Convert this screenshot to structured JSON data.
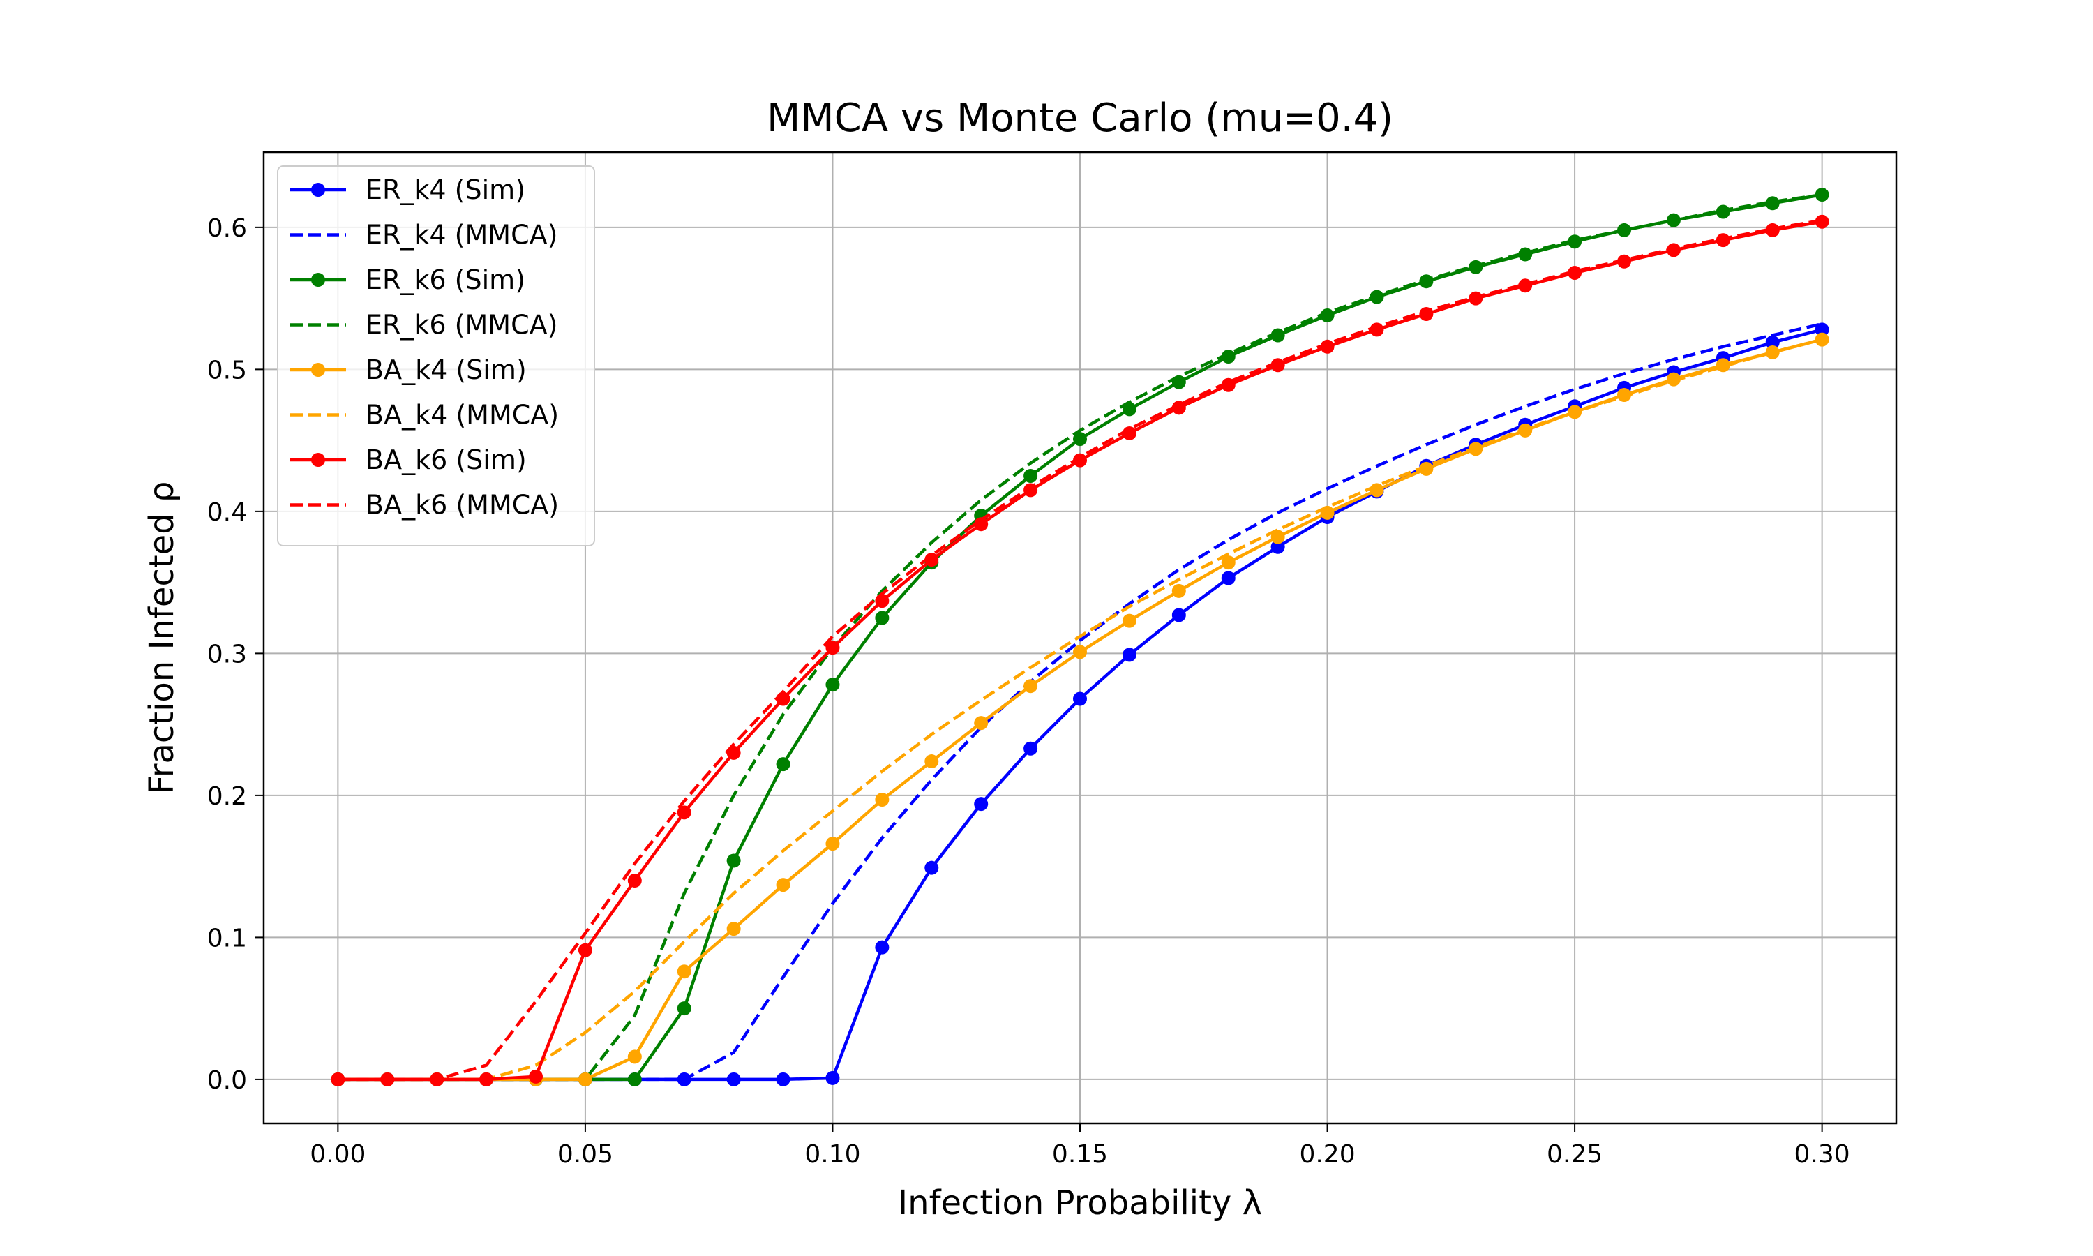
{
  "chart_data": {
    "type": "line",
    "title": "MMCA vs Monte Carlo (mu=0.4)",
    "xlabel": "Infection Probability λ",
    "ylabel": "Fraction Infected ρ",
    "xlim": [
      -0.015,
      0.315
    ],
    "ylim": [
      -0.031,
      0.653
    ],
    "xticks": [
      "0.00",
      "0.05",
      "0.10",
      "0.15",
      "0.20",
      "0.25",
      "0.30"
    ],
    "yticks": [
      "0.0",
      "0.1",
      "0.2",
      "0.3",
      "0.4",
      "0.5",
      "0.6"
    ],
    "grid": true,
    "legend_position": "top-left",
    "x": [
      0.0,
      0.01,
      0.02,
      0.03,
      0.04,
      0.05,
      0.06,
      0.07,
      0.08,
      0.09,
      0.1,
      0.11,
      0.12,
      0.13,
      0.14,
      0.15,
      0.16,
      0.17,
      0.18,
      0.19,
      0.2,
      0.21,
      0.22,
      0.23,
      0.24,
      0.25,
      0.26,
      0.27,
      0.28,
      0.29,
      0.3
    ],
    "series": [
      {
        "name": "ER_k4 (Sim)",
        "color": "#0000ff",
        "style": "solid-marker",
        "values": [
          0,
          0,
          0,
          0,
          0,
          0,
          0,
          0,
          0,
          0,
          0.001,
          0.093,
          0.149,
          0.194,
          0.233,
          0.268,
          0.299,
          0.327,
          0.353,
          0.375,
          0.396,
          0.414,
          0.432,
          0.447,
          0.461,
          0.474,
          0.487,
          0.498,
          0.508,
          0.519,
          0.528
        ]
      },
      {
        "name": "ER_k4 (MMCA)",
        "color": "#0000ff",
        "style": "dashed",
        "values": [
          0,
          0,
          0,
          0,
          0,
          0,
          0,
          0,
          0.019,
          0.072,
          0.124,
          0.17,
          0.211,
          0.248,
          0.28,
          0.309,
          0.335,
          0.359,
          0.38,
          0.399,
          0.416,
          0.432,
          0.447,
          0.461,
          0.474,
          0.486,
          0.497,
          0.507,
          0.516,
          0.524,
          0.532
        ]
      },
      {
        "name": "ER_k6 (Sim)",
        "color": "#008000",
        "style": "solid-marker",
        "values": [
          0,
          0,
          0,
          0,
          0,
          0,
          0,
          0.05,
          0.154,
          0.222,
          0.278,
          0.325,
          0.364,
          0.397,
          0.425,
          0.451,
          0.472,
          0.491,
          0.509,
          0.524,
          0.538,
          0.551,
          0.562,
          0.572,
          0.581,
          0.59,
          0.598,
          0.605,
          0.611,
          0.617,
          0.623
        ]
      },
      {
        "name": "ER_k6 (MMCA)",
        "color": "#008000",
        "style": "dashed",
        "values": [
          0,
          0,
          0,
          0,
          0,
          0,
          0.045,
          0.131,
          0.2,
          0.257,
          0.304,
          0.344,
          0.378,
          0.408,
          0.434,
          0.457,
          0.477,
          0.495,
          0.511,
          0.526,
          0.54,
          0.552,
          0.563,
          0.573,
          0.582,
          0.591,
          0.598,
          0.605,
          0.612,
          0.618,
          0.623
        ]
      },
      {
        "name": "BA_k4 (Sim)",
        "color": "#ffa500",
        "style": "solid-marker",
        "values": [
          0,
          0,
          0,
          0,
          0,
          0,
          0.016,
          0.076,
          0.106,
          0.137,
          0.166,
          0.197,
          0.224,
          0.251,
          0.277,
          0.301,
          0.323,
          0.344,
          0.364,
          0.382,
          0.399,
          0.415,
          0.43,
          0.444,
          0.457,
          0.47,
          0.482,
          0.493,
          0.503,
          0.512,
          0.521
        ]
      },
      {
        "name": "BA_k4 (MMCA)",
        "color": "#ffa500",
        "style": "dashed",
        "values": [
          0,
          0,
          0,
          0,
          0.01,
          0.033,
          0.062,
          0.097,
          0.131,
          0.161,
          0.189,
          0.217,
          0.243,
          0.267,
          0.29,
          0.312,
          0.333,
          0.352,
          0.37,
          0.387,
          0.403,
          0.418,
          0.432,
          0.445,
          0.458,
          0.47,
          0.481,
          0.492,
          0.502,
          0.512,
          0.521
        ]
      },
      {
        "name": "BA_k6 (Sim)",
        "color": "#ff0000",
        "style": "solid-marker",
        "values": [
          0,
          0,
          0,
          0,
          0.002,
          0.091,
          0.14,
          0.188,
          0.23,
          0.268,
          0.304,
          0.337,
          0.366,
          0.391,
          0.415,
          0.436,
          0.455,
          0.473,
          0.489,
          0.503,
          0.516,
          0.528,
          0.539,
          0.55,
          0.559,
          0.568,
          0.576,
          0.584,
          0.591,
          0.598,
          0.604
        ]
      },
      {
        "name": "BA_k6 (MMCA)",
        "color": "#ff0000",
        "style": "dashed",
        "values": [
          0,
          0,
          0,
          0.01,
          0.055,
          0.103,
          0.152,
          0.196,
          0.236,
          0.273,
          0.312,
          0.342,
          0.369,
          0.394,
          0.417,
          0.438,
          0.458,
          0.475,
          0.491,
          0.505,
          0.518,
          0.53,
          0.541,
          0.551,
          0.56,
          0.569,
          0.577,
          0.585,
          0.592,
          0.599,
          0.605
        ]
      }
    ]
  }
}
